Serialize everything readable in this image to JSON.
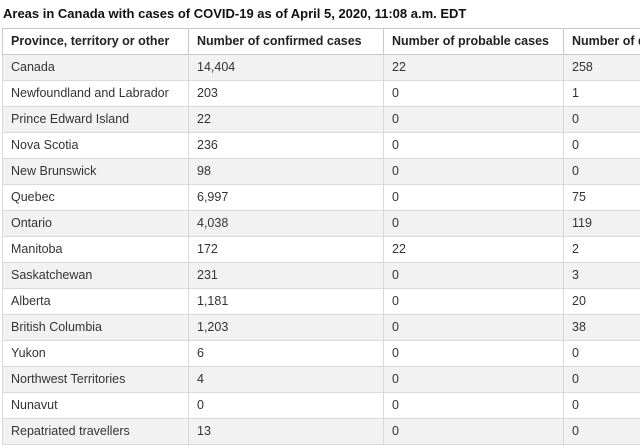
{
  "title": "Areas in Canada with cases of COVID-19 as of April 5, 2020, 11:08 a.m. EDT",
  "table": {
    "columns": [
      "Province, territory or other",
      "Number of confirmed cases",
      "Number of probable cases",
      "Number of deaths"
    ],
    "rows": [
      {
        "region": "Canada",
        "confirmed": "14,404",
        "probable": "22",
        "deaths": "258"
      },
      {
        "region": "Newfoundland and Labrador",
        "confirmed": "203",
        "probable": "0",
        "deaths": "1"
      },
      {
        "region": "Prince Edward Island",
        "confirmed": "22",
        "probable": "0",
        "deaths": "0"
      },
      {
        "region": "Nova Scotia",
        "confirmed": "236",
        "probable": "0",
        "deaths": "0"
      },
      {
        "region": "New Brunswick",
        "confirmed": "98",
        "probable": "0",
        "deaths": "0"
      },
      {
        "region": "Quebec",
        "confirmed": "6,997",
        "probable": "0",
        "deaths": "75"
      },
      {
        "region": "Ontario",
        "confirmed": "4,038",
        "probable": "0",
        "deaths": "119"
      },
      {
        "region": "Manitoba",
        "confirmed": "172",
        "probable": "22",
        "deaths": "2"
      },
      {
        "region": "Saskatchewan",
        "confirmed": "231",
        "probable": "0",
        "deaths": "3"
      },
      {
        "region": "Alberta",
        "confirmed": "1,181",
        "probable": "0",
        "deaths": "20"
      },
      {
        "region": "British Columbia",
        "confirmed": "1,203",
        "probable": "0",
        "deaths": "38"
      },
      {
        "region": "Yukon",
        "confirmed": "6",
        "probable": "0",
        "deaths": "0"
      },
      {
        "region": "Northwest Territories",
        "confirmed": "4",
        "probable": "0",
        "deaths": "0"
      },
      {
        "region": "Nunavut",
        "confirmed": "0",
        "probable": "0",
        "deaths": "0"
      },
      {
        "region": "Repatriated travellers",
        "confirmed": "13",
        "probable": "0",
        "deaths": "0"
      }
    ]
  },
  "colors": {
    "stripe_row_bg": "#f2f2f2",
    "white_row_bg": "#ffffff",
    "outer_border": "#c6c6c6",
    "inner_border": "#d9d9d9",
    "title_text": "#111111",
    "header_text": "#222222",
    "cell_text": "#333333"
  },
  "chart_data": {
    "type": "table",
    "title": "Areas in Canada with cases of COVID-19 as of April 5, 2020, 11:08 a.m. EDT",
    "columns": [
      "Province, territory or other",
      "Number of confirmed cases",
      "Number of probable cases",
      "Number of deaths"
    ],
    "rows": [
      [
        "Canada",
        14404,
        22,
        258
      ],
      [
        "Newfoundland and Labrador",
        203,
        0,
        1
      ],
      [
        "Prince Edward Island",
        22,
        0,
        0
      ],
      [
        "Nova Scotia",
        236,
        0,
        0
      ],
      [
        "New Brunswick",
        98,
        0,
        0
      ],
      [
        "Quebec",
        6997,
        0,
        75
      ],
      [
        "Ontario",
        4038,
        0,
        119
      ],
      [
        "Manitoba",
        172,
        22,
        2
      ],
      [
        "Saskatchewan",
        231,
        0,
        3
      ],
      [
        "Alberta",
        1181,
        0,
        20
      ],
      [
        "British Columbia",
        1203,
        0,
        38
      ],
      [
        "Yukon",
        6,
        0,
        0
      ],
      [
        "Northwest Territories",
        4,
        0,
        0
      ],
      [
        "Nunavut",
        0,
        0,
        0
      ],
      [
        "Repatriated travellers",
        13,
        0,
        0
      ]
    ]
  }
}
